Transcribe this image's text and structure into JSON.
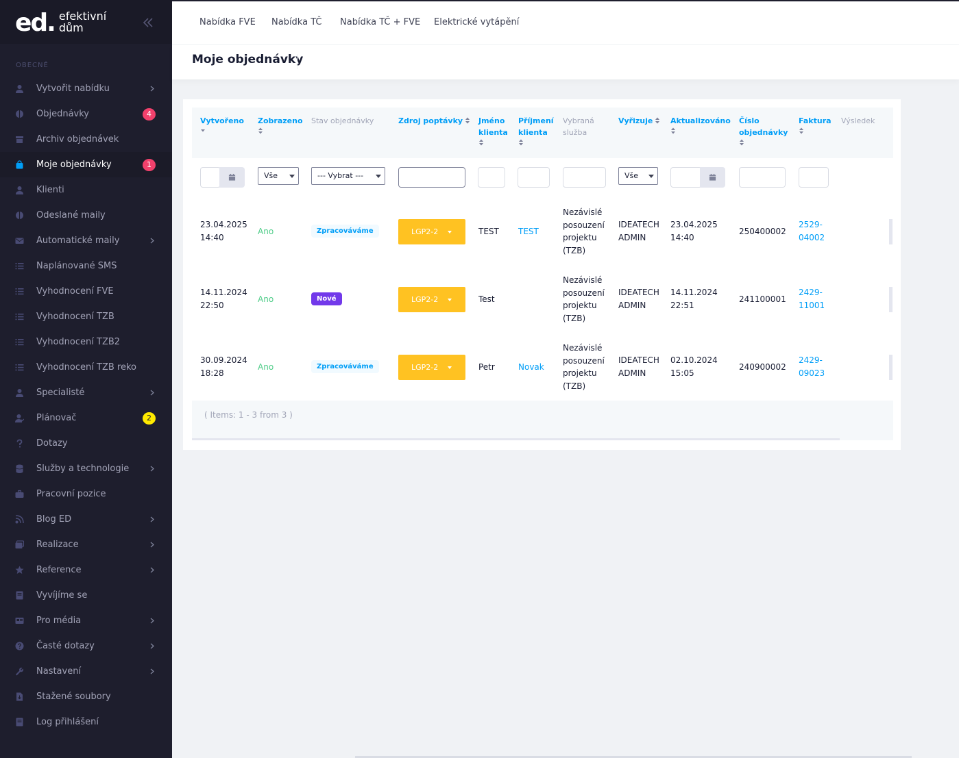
{
  "brand": {
    "mark": "ed.",
    "line1": "efektivní",
    "line2": "dům"
  },
  "sidebar": {
    "section": "OBECNÉ",
    "items": [
      {
        "label": "Vytvořit nabídku",
        "icon": "user-icon",
        "arrow": true
      },
      {
        "label": "Objednávky",
        "icon": "half-circle-icon",
        "badge": "4"
      },
      {
        "label": "Archiv objednávek",
        "icon": "archive-icon"
      },
      {
        "label": "Moje objednávky",
        "icon": "bag-icon",
        "badge": "1",
        "active": true
      },
      {
        "label": "Klienti",
        "icon": "user-icon"
      },
      {
        "label": "Odeslané maily",
        "icon": "half-circle-icon"
      },
      {
        "label": "Automatické maily",
        "icon": "envelope-icon",
        "arrow": true
      },
      {
        "label": "Naplánované SMS",
        "icon": "list-icon"
      },
      {
        "label": "Vyhodnocení FVE",
        "icon": "list-icon"
      },
      {
        "label": "Vyhodnocení TZB",
        "icon": "list-icon"
      },
      {
        "label": "Vyhodnocení TZB2",
        "icon": "list-icon"
      },
      {
        "label": "Vyhodnocení TZB reko",
        "icon": "list-icon"
      },
      {
        "label": "Specialisté",
        "icon": "user-icon",
        "arrow": true
      },
      {
        "label": "Plánovač",
        "icon": "user-check-icon",
        "badge": "2",
        "badgeColor": "yellow"
      },
      {
        "label": "Dotazy",
        "icon": "question-icon"
      },
      {
        "label": "Služby a technologie",
        "icon": "database-icon",
        "arrow": true
      },
      {
        "label": "Pracovní pozice",
        "icon": "briefcase-icon"
      },
      {
        "label": "Blog ED",
        "icon": "blog-icon",
        "arrow": true
      },
      {
        "label": "Realizace",
        "icon": "images-icon",
        "arrow": true
      },
      {
        "label": "Reference",
        "icon": "star-icon",
        "arrow": true
      },
      {
        "label": "Vyvíjíme se",
        "icon": "book-icon"
      },
      {
        "label": "Pro média",
        "icon": "newspaper-icon",
        "arrow": true
      },
      {
        "label": "Časté dotazy",
        "icon": "question-circle-icon",
        "arrow": true
      },
      {
        "label": "Nastavení",
        "icon": "wrench-icon",
        "arrow": true
      },
      {
        "label": "Stažené soubory",
        "icon": "file-download-icon"
      },
      {
        "label": "Log přihlášení",
        "icon": "book-icon"
      }
    ]
  },
  "topnav": [
    "Nabídka FVE",
    "Nabídka TČ",
    "Nabídka TČ + FVE",
    "Elektrické vytápění"
  ],
  "page_title": "Moje objednávky",
  "table": {
    "headers": {
      "created": [
        "Vytvořeno"
      ],
      "shown": [
        "Zobrazeno"
      ],
      "state": [
        "Stav objednávky"
      ],
      "source": [
        "Zdroj poptávky"
      ],
      "first": [
        "Jméno",
        "klienta"
      ],
      "last": [
        "Příjmení",
        "klienta"
      ],
      "service": [
        "Vybraná",
        "služba"
      ],
      "handler": [
        "Vyřizuje"
      ],
      "updated": [
        "Aktualizováno"
      ],
      "order_no": [
        "Číslo",
        "objednávky"
      ],
      "invoice": [
        "Faktura"
      ],
      "result": [
        "Výsledek"
      ]
    },
    "filters": {
      "shown": "Vše",
      "state": "--- Vybrat ---",
      "handler": "Vše"
    },
    "rows": [
      {
        "created": [
          "23.04.2025",
          "14:40"
        ],
        "shown": "Ano",
        "state": "Zpracováváme",
        "state_style": "light",
        "source": "LGP2-2",
        "first": "TEST",
        "last": "TEST",
        "service": [
          "Nezávislé",
          "posouzení",
          "projektu",
          "(TZB)"
        ],
        "handler": [
          "IDEATECH",
          "ADMIN"
        ],
        "updated": [
          "23.04.2025",
          "14:40"
        ],
        "order_no": "250400002",
        "invoice": [
          "2529-",
          "04002"
        ]
      },
      {
        "created": [
          "14.11.2024",
          "22:50"
        ],
        "shown": "Ano",
        "state": "Nové",
        "state_style": "purple",
        "source": "LGP2-2",
        "first": "Test",
        "last": "",
        "service": [
          "Nezávislé",
          "posouzení",
          "projektu",
          "(TZB)"
        ],
        "handler": [
          "IDEATECH",
          "ADMIN"
        ],
        "updated": [
          "14.11.2024",
          "22:51"
        ],
        "order_no": "241100001",
        "invoice": [
          "2429-",
          "11001"
        ]
      },
      {
        "created": [
          "30.09.2024",
          "18:28"
        ],
        "shown": "Ano",
        "state": "Zpracováváme",
        "state_style": "light",
        "source": "LGP2-2",
        "first": "Petr",
        "last": "Novak",
        "service": [
          "Nezávislé",
          "posouzení",
          "projektu",
          "(TZB)"
        ],
        "handler": [
          "IDEATECH",
          "ADMIN"
        ],
        "updated": [
          "02.10.2024",
          "15:05"
        ],
        "order_no": "240900002",
        "invoice": [
          "2429-",
          "09023"
        ]
      }
    ],
    "footer": "( Items: 1 - 3 from 3 )"
  }
}
